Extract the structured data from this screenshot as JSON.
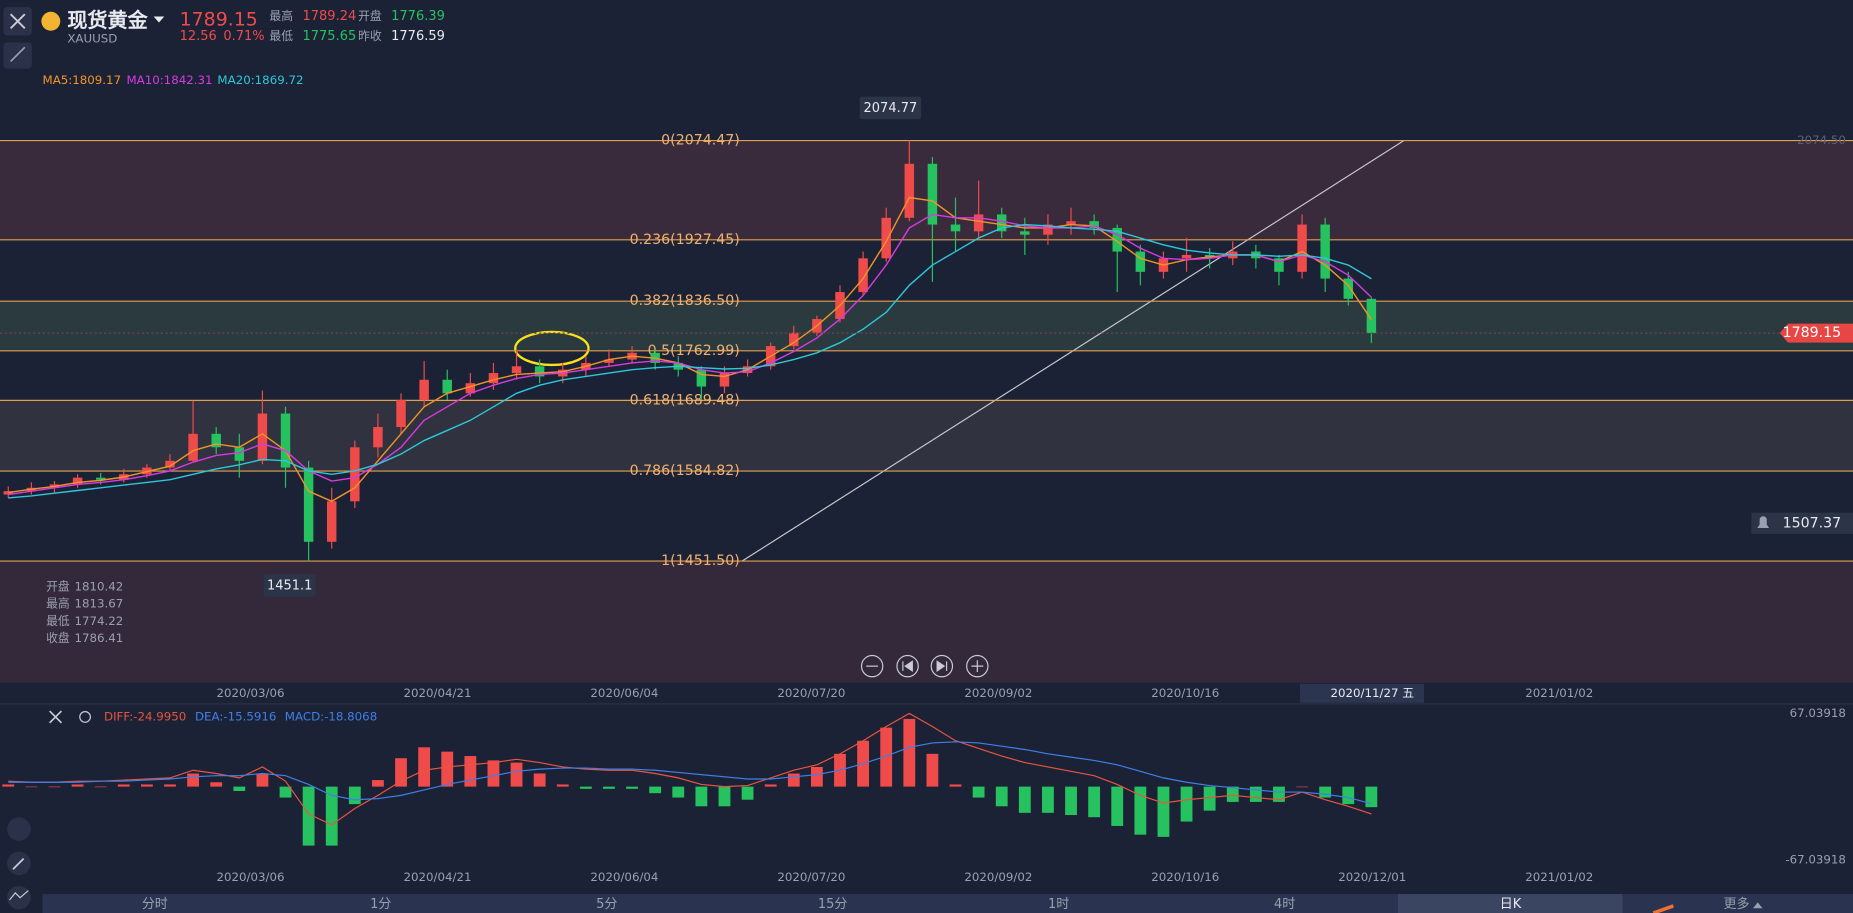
{
  "header": {
    "name": "现货黄金",
    "symbol": "XAUUSD",
    "price": "1789.15",
    "change": "12.56",
    "change_pct": "0.71%",
    "high_label": "最高",
    "high": "1789.24",
    "open_label": "开盘",
    "open": "1776.39",
    "low_label": "最低",
    "low": "1775.65",
    "prev_close_label": "昨收",
    "prev_close": "1776.59"
  },
  "chart_data": {
    "type": "candlestick",
    "ylim": [
      1451.5,
      2074.47
    ],
    "price_tags": [
      {
        "value": 2074.5,
        "label": "2074.50"
      },
      1789.15,
      1507.37
    ],
    "high_marker": 2074.77,
    "low_marker": 1451.1,
    "fib": [
      {
        "label": "0(2074.47)",
        "value": 2074.47
      },
      {
        "label": "0.236(1927.45)",
        "value": 1927.45
      },
      {
        "label": "0.382(1836.50)",
        "value": 1836.5
      },
      {
        "label": "0.5(1762.99)",
        "value": 1762.99
      },
      {
        "label": "0.618(1689.48)",
        "value": 1689.48
      },
      {
        "label": "0.786(1584.82)",
        "value": 1584.82
      },
      {
        "label": "1(1451.50)",
        "value": 1451.5
      }
    ],
    "info": [
      {
        "label": "开盘",
        "value": 1810.42
      },
      {
        "label": "最高",
        "value": 1813.67
      },
      {
        "label": "最低",
        "value": 1774.22
      },
      {
        "label": "收盘",
        "value": 1786.41
      }
    ],
    "x_labels": [
      "2020/03/06",
      "2020/04/21",
      "2020/06/04",
      "2020/07/20",
      "2020/09/02",
      "2020/10/16",
      "2020/11/27 五",
      "2021/01/02"
    ],
    "up_color": "#f04b4b",
    "down_color": "#26c25f",
    "candles": [
      [
        1550,
        1562,
        1545,
        1555
      ],
      [
        1555,
        1568,
        1550,
        1560
      ],
      [
        1560,
        1570,
        1552,
        1565
      ],
      [
        1565,
        1580,
        1560,
        1575
      ],
      [
        1575,
        1582,
        1565,
        1572
      ],
      [
        1572,
        1588,
        1568,
        1580
      ],
      [
        1580,
        1595,
        1575,
        1590
      ],
      [
        1590,
        1610,
        1585,
        1600
      ],
      [
        1600,
        1689,
        1598,
        1640
      ],
      [
        1640,
        1650,
        1610,
        1620
      ],
      [
        1620,
        1640,
        1575,
        1600
      ],
      [
        1600,
        1704,
        1595,
        1670
      ],
      [
        1670,
        1680,
        1560,
        1590
      ],
      [
        1590,
        1600,
        1451.1,
        1480
      ],
      [
        1480,
        1560,
        1470,
        1540
      ],
      [
        1540,
        1630,
        1530,
        1620
      ],
      [
        1620,
        1670,
        1605,
        1650
      ],
      [
        1650,
        1700,
        1640,
        1690
      ],
      [
        1690,
        1748,
        1680,
        1720
      ],
      [
        1720,
        1735,
        1690,
        1700
      ],
      [
        1700,
        1730,
        1695,
        1715
      ],
      [
        1715,
        1745,
        1705,
        1730
      ],
      [
        1730,
        1765,
        1720,
        1740
      ],
      [
        1740,
        1750,
        1715,
        1725
      ],
      [
        1725,
        1745,
        1715,
        1735
      ],
      [
        1735,
        1755,
        1725,
        1745
      ],
      [
        1745,
        1765,
        1740,
        1750
      ],
      [
        1750,
        1770,
        1745,
        1760
      ],
      [
        1760,
        1765,
        1735,
        1745
      ],
      [
        1745,
        1755,
        1725,
        1735
      ],
      [
        1735,
        1740,
        1690,
        1710
      ],
      [
        1710,
        1740,
        1700,
        1730
      ],
      [
        1730,
        1750,
        1725,
        1740
      ],
      [
        1740,
        1775,
        1735,
        1770
      ],
      [
        1770,
        1800,
        1765,
        1790
      ],
      [
        1790,
        1815,
        1785,
        1810
      ],
      [
        1810,
        1860,
        1805,
        1850
      ],
      [
        1850,
        1910,
        1845,
        1900
      ],
      [
        1900,
        1975,
        1895,
        1960
      ],
      [
        1960,
        2074.77,
        1955,
        2040
      ],
      [
        2040,
        2050,
        1865,
        1950
      ],
      [
        1950,
        1990,
        1910,
        1940
      ],
      [
        1940,
        2015,
        1930,
        1965
      ],
      [
        1965,
        1975,
        1930,
        1940
      ],
      [
        1940,
        1960,
        1905,
        1935
      ],
      [
        1935,
        1965,
        1920,
        1950
      ],
      [
        1950,
        1975,
        1935,
        1955
      ],
      [
        1955,
        1965,
        1935,
        1945
      ],
      [
        1945,
        1950,
        1850,
        1910
      ],
      [
        1910,
        1920,
        1860,
        1880
      ],
      [
        1880,
        1910,
        1870,
        1900
      ],
      [
        1900,
        1930,
        1880,
        1905
      ],
      [
        1905,
        1915,
        1885,
        1900
      ],
      [
        1900,
        1925,
        1890,
        1910
      ],
      [
        1910,
        1920,
        1885,
        1900
      ],
      [
        1900,
        1905,
        1860,
        1880
      ],
      [
        1880,
        1965,
        1870,
        1950
      ],
      [
        1950,
        1960,
        1850,
        1870
      ],
      [
        1870,
        1880,
        1830,
        1840
      ],
      [
        1840,
        1842,
        1774.22,
        1789.15
      ]
    ],
    "ma_series": [
      {
        "name": "MA5:1809.17",
        "color": "#f0932b",
        "values": [
          1553,
          1558,
          1562,
          1568,
          1571,
          1576,
          1584,
          1592,
          1615,
          1625,
          1620,
          1640,
          1615,
          1555,
          1540,
          1560,
          1600,
          1640,
          1680,
          1700,
          1710,
          1720,
          1728,
          1730,
          1732,
          1740,
          1750,
          1755,
          1752,
          1745,
          1728,
          1725,
          1735,
          1755,
          1775,
          1800,
          1830,
          1870,
          1925,
          1990,
          1985,
          1960,
          1955,
          1950,
          1945,
          1945,
          1950,
          1948,
          1925,
          1900,
          1890,
          1898,
          1902,
          1905,
          1905,
          1895,
          1910,
          1890,
          1860,
          1809.17
        ]
      },
      {
        "name": "MA10:1842.31",
        "color": "#d63ae0",
        "values": [
          1550,
          1555,
          1560,
          1565,
          1568,
          1572,
          1578,
          1585,
          1598,
          1608,
          1612,
          1625,
          1615,
          1585,
          1570,
          1575,
          1595,
          1620,
          1660,
          1680,
          1700,
          1712,
          1722,
          1728,
          1730,
          1735,
          1740,
          1745,
          1748,
          1745,
          1735,
          1730,
          1732,
          1745,
          1762,
          1782,
          1810,
          1845,
          1890,
          1945,
          1965,
          1960,
          1960,
          1955,
          1948,
          1945,
          1945,
          1948,
          1935,
          1915,
          1900,
          1898,
          1900,
          1905,
          1905,
          1895,
          1905,
          1895,
          1875,
          1842.31
        ]
      },
      {
        "name": "MA20:1869.72",
        "color": "#2ec6d8",
        "values": [
          1545,
          1548,
          1552,
          1556,
          1560,
          1564,
          1568,
          1572,
          1580,
          1588,
          1594,
          1602,
          1600,
          1585,
          1580,
          1585,
          1595,
          1610,
          1630,
          1645,
          1660,
          1680,
          1700,
          1712,
          1720,
          1725,
          1730,
          1735,
          1738,
          1740,
          1738,
          1736,
          1737,
          1742,
          1750,
          1760,
          1775,
          1795,
          1820,
          1860,
          1890,
          1910,
          1930,
          1945,
          1950,
          1948,
          1945,
          1943,
          1940,
          1930,
          1920,
          1912,
          1908,
          1905,
          1905,
          1903,
          1905,
          1900,
          1890,
          1869.72
        ]
      }
    ]
  },
  "macd": {
    "ylim": [
      -67.03918,
      67.03918
    ],
    "yticks": [
      67.03918,
      -67.03918
    ],
    "x_labels": [
      "2020/03/06",
      "2020/04/21",
      "2020/06/04",
      "2020/07/20",
      "2020/09/02",
      "2020/10/16",
      "2020/12/01",
      "2021/01/02"
    ],
    "series": [
      {
        "name": "DIFF:-24.9950",
        "color": "#e8543f",
        "values": [
          5,
          4,
          4,
          5,
          5,
          6,
          7,
          8,
          15,
          12,
          8,
          18,
          5,
          -25,
          -35,
          -20,
          -8,
          5,
          15,
          18,
          20,
          22,
          25,
          22,
          18,
          16,
          15,
          15,
          12,
          8,
          2,
          0,
          1,
          8,
          15,
          20,
          30,
          42,
          55,
          67,
          55,
          42,
          35,
          28,
          22,
          18,
          14,
          10,
          2,
          -8,
          -15,
          -12,
          -10,
          -8,
          -10,
          -12,
          -5,
          -12,
          -18,
          -24.995
        ]
      },
      {
        "name": "DEA:-15.5916",
        "color": "#3f7fe8",
        "values": [
          4,
          4,
          4,
          4,
          5,
          5,
          6,
          7,
          9,
          10,
          10,
          12,
          10,
          2,
          -8,
          -12,
          -11,
          -8,
          -3,
          2,
          6,
          10,
          14,
          16,
          17,
          17,
          16,
          16,
          15,
          13,
          11,
          9,
          7,
          7,
          9,
          11,
          15,
          21,
          28,
          36,
          40,
          41,
          40,
          37,
          34,
          30,
          27,
          24,
          20,
          14,
          8,
          4,
          1,
          -1,
          -3,
          -5,
          -5,
          -7,
          -10,
          -15.5916
        ]
      },
      {
        "name": "MACD:-18.8068",
        "color": "#3f7fe8",
        "values": [
          2,
          0,
          0,
          2,
          0,
          2,
          2,
          2,
          12,
          4,
          -4,
          12,
          -10,
          -54,
          -54,
          -16,
          6,
          26,
          36,
          32,
          28,
          24,
          22,
          12,
          2,
          -2,
          -2,
          -2,
          -6,
          -10,
          -18,
          -18,
          -12,
          2,
          12,
          18,
          30,
          42,
          54,
          62,
          30,
          2,
          -10,
          -18,
          -24,
          -24,
          -26,
          -28,
          -36,
          -44,
          -46,
          -32,
          -22,
          -14,
          -14,
          -14,
          0,
          -10,
          -16,
          -18.8068
        ]
      }
    ]
  },
  "tabs": [
    "分时",
    "1分",
    "5分",
    "15分",
    "1时",
    "4时",
    "日K",
    "更多"
  ]
}
